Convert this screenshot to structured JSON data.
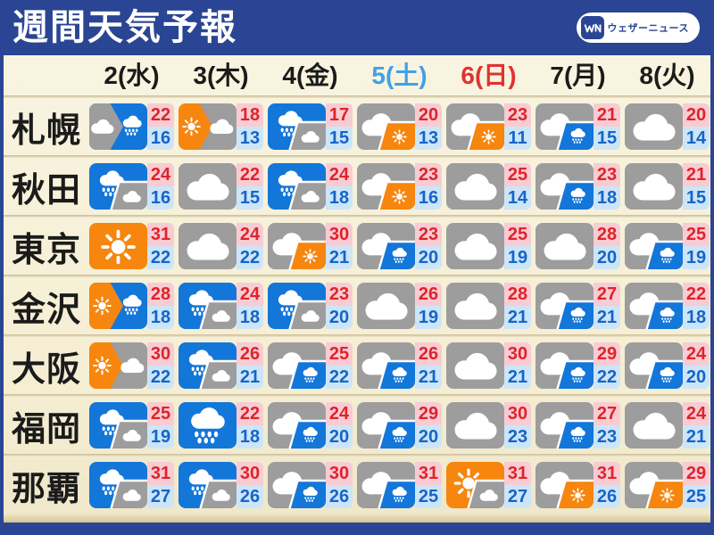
{
  "header": {
    "title": "週間天気予報",
    "logo_text": "ウェザーニュース",
    "logo_mark": "WN"
  },
  "colors": {
    "navy": "#2a4593",
    "cream_top": "#f9f4e0",
    "cream_bottom": "#efe7c9",
    "sunny": "#f6860e",
    "cloudy": "#9d9d9e",
    "rain": "#1376d9",
    "high_bg": "#f8ccd2",
    "high_text": "#df232c",
    "low_bg": "#cde5f8",
    "low_text": "#1565c8"
  },
  "chart_data": {
    "type": "table",
    "title": "週間天気予報",
    "columns": [
      {
        "label": "2(水)",
        "color": "#1b1b1b"
      },
      {
        "label": "3(木)",
        "color": "#1b1b1b"
      },
      {
        "label": "4(金)",
        "color": "#1b1b1b"
      },
      {
        "label": "5(土)",
        "color": "#42a0e8"
      },
      {
        "label": "6(日)",
        "color": "#e03232"
      },
      {
        "label": "7(月)",
        "color": "#1b1b1b"
      },
      {
        "label": "8(火)",
        "color": "#1b1b1b"
      }
    ],
    "rows": [
      {
        "city": "札幌",
        "cells": [
          {
            "style": "half",
            "main": "cloudy",
            "sub": "rain",
            "high": "22",
            "low": "16"
          },
          {
            "style": "half",
            "main": "sunny",
            "sub": "cloudy",
            "high": "18",
            "low": "13"
          },
          {
            "style": "corner",
            "main": "rain",
            "sub": "cloudy",
            "high": "17",
            "low": "15"
          },
          {
            "style": "corner",
            "main": "cloudy",
            "sub": "sunny",
            "high": "20",
            "low": "13"
          },
          {
            "style": "corner",
            "main": "cloudy",
            "sub": "sunny",
            "high": "23",
            "low": "11"
          },
          {
            "style": "corner",
            "main": "cloudy",
            "sub": "rain",
            "high": "21",
            "low": "15"
          },
          {
            "style": "single",
            "main": "cloudy",
            "sub": "",
            "high": "20",
            "low": "14"
          }
        ]
      },
      {
        "city": "秋田",
        "cells": [
          {
            "style": "corner",
            "main": "rain",
            "sub": "cloudy",
            "high": "24",
            "low": "16"
          },
          {
            "style": "single",
            "main": "cloudy",
            "sub": "",
            "high": "22",
            "low": "15"
          },
          {
            "style": "corner",
            "main": "rain",
            "sub": "cloudy",
            "high": "24",
            "low": "18"
          },
          {
            "style": "corner",
            "main": "cloudy",
            "sub": "sunny",
            "high": "23",
            "low": "16"
          },
          {
            "style": "single",
            "main": "cloudy",
            "sub": "",
            "high": "25",
            "low": "14"
          },
          {
            "style": "corner",
            "main": "cloudy",
            "sub": "rain",
            "high": "23",
            "low": "18"
          },
          {
            "style": "single",
            "main": "cloudy",
            "sub": "",
            "high": "21",
            "low": "15"
          }
        ]
      },
      {
        "city": "東京",
        "cells": [
          {
            "style": "single",
            "main": "sunny",
            "sub": "",
            "high": "31",
            "low": "22"
          },
          {
            "style": "single",
            "main": "cloudy",
            "sub": "",
            "high": "24",
            "low": "22"
          },
          {
            "style": "corner",
            "main": "cloudy",
            "sub": "sunny",
            "high": "30",
            "low": "21"
          },
          {
            "style": "corner",
            "main": "cloudy",
            "sub": "rain",
            "high": "23",
            "low": "20"
          },
          {
            "style": "single",
            "main": "cloudy",
            "sub": "",
            "high": "25",
            "low": "19"
          },
          {
            "style": "single",
            "main": "cloudy",
            "sub": "",
            "high": "28",
            "low": "20"
          },
          {
            "style": "corner",
            "main": "cloudy",
            "sub": "rain",
            "high": "25",
            "low": "19"
          }
        ]
      },
      {
        "city": "金沢",
        "cells": [
          {
            "style": "half",
            "main": "sunny",
            "sub": "rain",
            "high": "28",
            "low": "18"
          },
          {
            "style": "corner",
            "main": "rain",
            "sub": "cloudy",
            "high": "24",
            "low": "18"
          },
          {
            "style": "corner",
            "main": "rain",
            "sub": "cloudy",
            "high": "23",
            "low": "20"
          },
          {
            "style": "single",
            "main": "cloudy",
            "sub": "",
            "high": "26",
            "low": "19"
          },
          {
            "style": "single",
            "main": "cloudy",
            "sub": "",
            "high": "28",
            "low": "21"
          },
          {
            "style": "corner",
            "main": "cloudy",
            "sub": "rain",
            "high": "27",
            "low": "21"
          },
          {
            "style": "corner",
            "main": "cloudy",
            "sub": "rain",
            "high": "22",
            "low": "18"
          }
        ]
      },
      {
        "city": "大阪",
        "cells": [
          {
            "style": "half",
            "main": "sunny",
            "sub": "cloudy",
            "high": "30",
            "low": "22"
          },
          {
            "style": "corner",
            "main": "rain",
            "sub": "cloudy",
            "high": "26",
            "low": "21"
          },
          {
            "style": "corner",
            "main": "cloudy",
            "sub": "rain",
            "high": "25",
            "low": "22"
          },
          {
            "style": "corner",
            "main": "cloudy",
            "sub": "rain",
            "high": "26",
            "low": "21"
          },
          {
            "style": "single",
            "main": "cloudy",
            "sub": "",
            "high": "30",
            "low": "21"
          },
          {
            "style": "corner",
            "main": "cloudy",
            "sub": "rain",
            "high": "29",
            "low": "22"
          },
          {
            "style": "corner",
            "main": "cloudy",
            "sub": "rain",
            "high": "24",
            "low": "20"
          }
        ]
      },
      {
        "city": "福岡",
        "cells": [
          {
            "style": "corner",
            "main": "rain",
            "sub": "cloudy",
            "high": "25",
            "low": "19"
          },
          {
            "style": "single",
            "main": "rain",
            "sub": "",
            "high": "22",
            "low": "18"
          },
          {
            "style": "corner",
            "main": "cloudy",
            "sub": "rain",
            "high": "24",
            "low": "20"
          },
          {
            "style": "corner",
            "main": "cloudy",
            "sub": "rain",
            "high": "29",
            "low": "20"
          },
          {
            "style": "single",
            "main": "cloudy",
            "sub": "",
            "high": "30",
            "low": "23"
          },
          {
            "style": "corner",
            "main": "cloudy",
            "sub": "rain",
            "high": "27",
            "low": "23"
          },
          {
            "style": "single",
            "main": "cloudy",
            "sub": "",
            "high": "24",
            "low": "21"
          }
        ]
      },
      {
        "city": "那覇",
        "cells": [
          {
            "style": "corner",
            "main": "rain",
            "sub": "cloudy",
            "high": "31",
            "low": "27"
          },
          {
            "style": "corner",
            "main": "rain",
            "sub": "cloudy",
            "high": "30",
            "low": "26"
          },
          {
            "style": "corner",
            "main": "cloudy",
            "sub": "rain",
            "high": "30",
            "low": "26"
          },
          {
            "style": "corner",
            "main": "cloudy",
            "sub": "rain",
            "high": "31",
            "low": "25"
          },
          {
            "style": "corner",
            "main": "sunny",
            "sub": "cloudy",
            "high": "31",
            "low": "27"
          },
          {
            "style": "corner",
            "main": "cloudy",
            "sub": "sunny",
            "high": "31",
            "low": "26"
          },
          {
            "style": "corner",
            "main": "cloudy",
            "sub": "sunny",
            "high": "29",
            "low": "25"
          }
        ]
      }
    ]
  }
}
